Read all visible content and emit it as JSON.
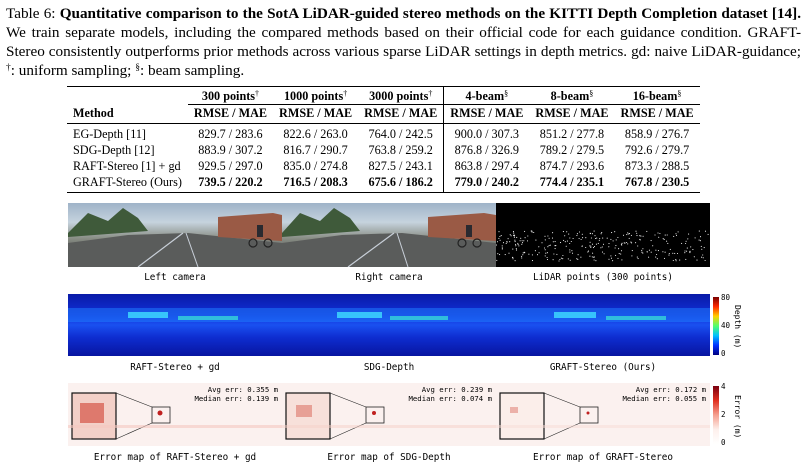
{
  "caption": {
    "prefix": "Table 6: ",
    "title": "Quantitative comparison to the SotA LiDAR-guided stereo methods on the KITTI Depth Completion dataset [14].",
    "body": " We train separate models, including the compared methods based on their official code for each guidance condition. GRAFT-Stereo consistently outperforms prior methods across various sparse LiDAR settings in depth metrics. gd: naive LiDAR-guidance; ",
    "dagger": "†",
    "dagger_text": ": uniform sampling; ",
    "section": "§",
    "section_text": ": beam sampling."
  },
  "table": {
    "groups": [
      {
        "label": "300 points",
        "mark": "†"
      },
      {
        "label": "1000 points",
        "mark": "†"
      },
      {
        "label": "3000 points",
        "mark": "†"
      },
      {
        "label": "4-beam",
        "mark": "§"
      },
      {
        "label": "8-beam",
        "mark": "§"
      },
      {
        "label": "16-beam",
        "mark": "§"
      }
    ],
    "method_header": "Method",
    "metric_header": "RMSE / MAE",
    "rows": [
      {
        "method": "EG-Depth [11]",
        "values": [
          "829.7 / 283.6",
          "822.6 / 263.0",
          "764.0 / 242.5",
          "900.0 / 307.3",
          "851.2 / 277.8",
          "858.9 / 276.7"
        ]
      },
      {
        "method": "SDG-Depth [12]",
        "values": [
          "883.9 / 307.2",
          "816.7 / 290.7",
          "763.8 / 259.2",
          "876.8 / 326.9",
          "789.2 / 279.5",
          "792.6 / 279.7"
        ]
      },
      {
        "method": "RAFT-Stereo [1] + gd",
        "values": [
          "929.5 / 297.0",
          "835.0 / 274.8",
          "827.5 / 243.1",
          "863.8 / 297.4",
          "874.7 / 293.6",
          "873.3 / 288.5"
        ]
      },
      {
        "method": "GRAFT-Stereo (Ours)",
        "values": [
          "739.5 / 220.2",
          "716.5 / 208.3",
          "675.6 / 186.2",
          "779.0 / 240.2",
          "774.4 / 235.1",
          "767.8 / 230.5"
        ],
        "best": true
      }
    ]
  },
  "figure": {
    "row1": [
      "Left camera",
      "Right camera",
      "LiDAR points (300 points)"
    ],
    "row2": [
      "RAFT-Stereo + gd",
      "SDG-Depth",
      "GRAFT-Stereo (Ours)"
    ],
    "row3": [
      "Error map of RAFT-Stereo + gd",
      "Error map of SDG-Depth",
      "Error map of GRAFT-Stereo"
    ],
    "depth_colorbar": {
      "title": "Depth (m)",
      "ticks": [
        "80",
        "40",
        "0"
      ]
    },
    "error_colorbar": {
      "title": "Error (m)",
      "ticks": [
        "4",
        "2",
        "0"
      ]
    },
    "errors": [
      {
        "avg": "Avg err: 0.355 m",
        "median": "Median err: 0.139 m"
      },
      {
        "avg": "Avg err: 0.239 m",
        "median": "Median err: 0.074 m"
      },
      {
        "avg": "Avg err: 0.172 m",
        "median": "Median err: 0.055 m"
      }
    ],
    "colors": {
      "depth_bg": "#1030d8",
      "error_bg": "#fbf1ef",
      "best_row": "#000000"
    }
  }
}
